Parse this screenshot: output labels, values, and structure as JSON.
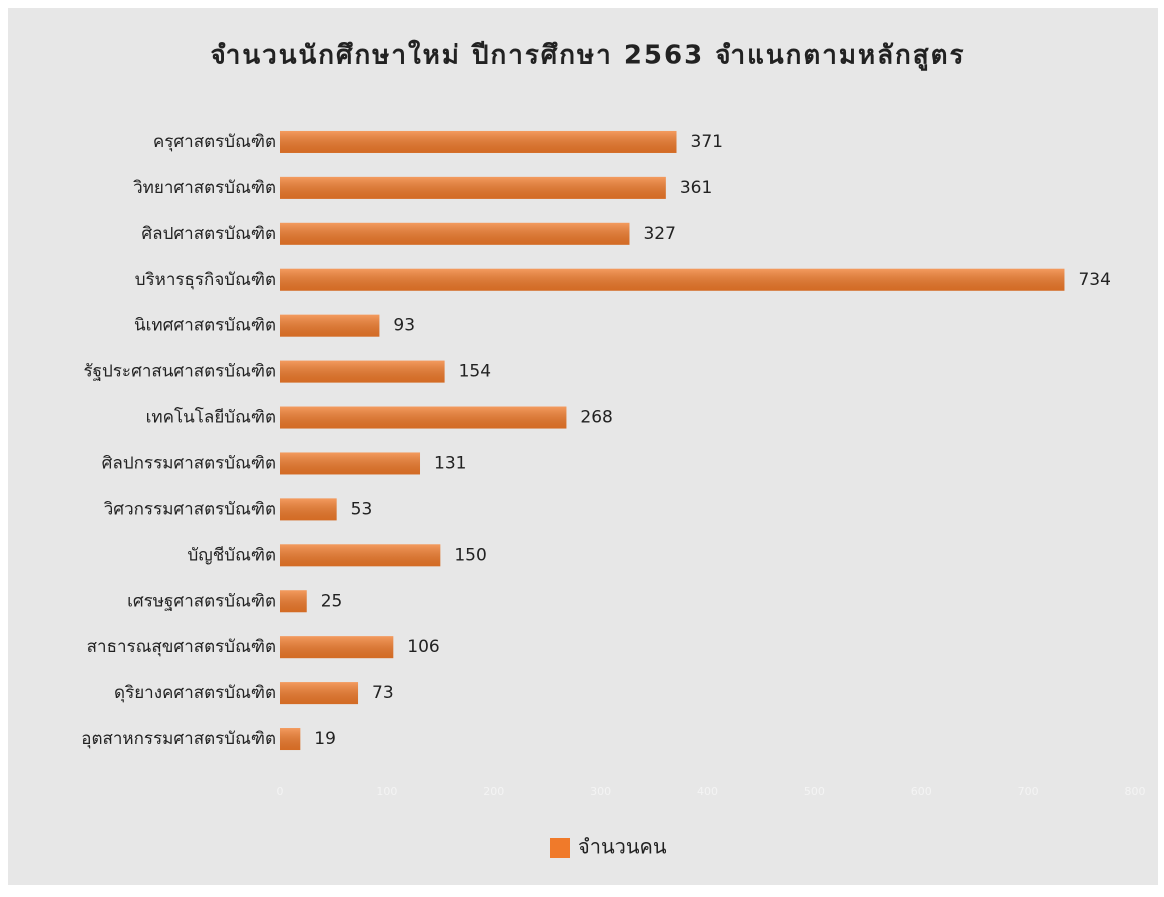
{
  "chart_data": {
    "type": "bar",
    "orientation": "horizontal",
    "title": "จำนวนนักศึกษาใหม่ ปีการศึกษา 2563 จำแนกตามหลักสูตร",
    "categories": [
      "ครุศาสตรบัณฑิต",
      "วิทยาศาสตรบัณฑิต",
      "ศิลปศาสตรบัณฑิต",
      "บริหารธุรกิจบัณฑิต",
      "นิเทศศาสตรบัณฑิต",
      "รัฐประศาสนศาสตรบัณฑิต",
      "เทคโนโลยีบัณฑิต",
      "ศิลปกรรมศาสตรบัณฑิต",
      "วิศวกรรมศาสตรบัณฑิต",
      "บัญชีบัณฑิต",
      "เศรษฐศาสตรบัณฑิต",
      "สาธารณสุขศาสตรบัณฑิต",
      "ดุริยางคศาสตรบัณฑิต",
      "อุตสาหกรรมศาสตรบัณฑิต"
    ],
    "series": [
      {
        "name": "จำนวนคน",
        "color": "#f07a2a",
        "values": [
          371,
          361,
          327,
          734,
          93,
          154,
          268,
          131,
          53,
          150,
          25,
          106,
          73,
          19
        ]
      }
    ],
    "xlim": [
      0,
      800
    ],
    "xticks": [
      0,
      100,
      200,
      300,
      400,
      500,
      600,
      700,
      800
    ],
    "legend": "bottom"
  }
}
